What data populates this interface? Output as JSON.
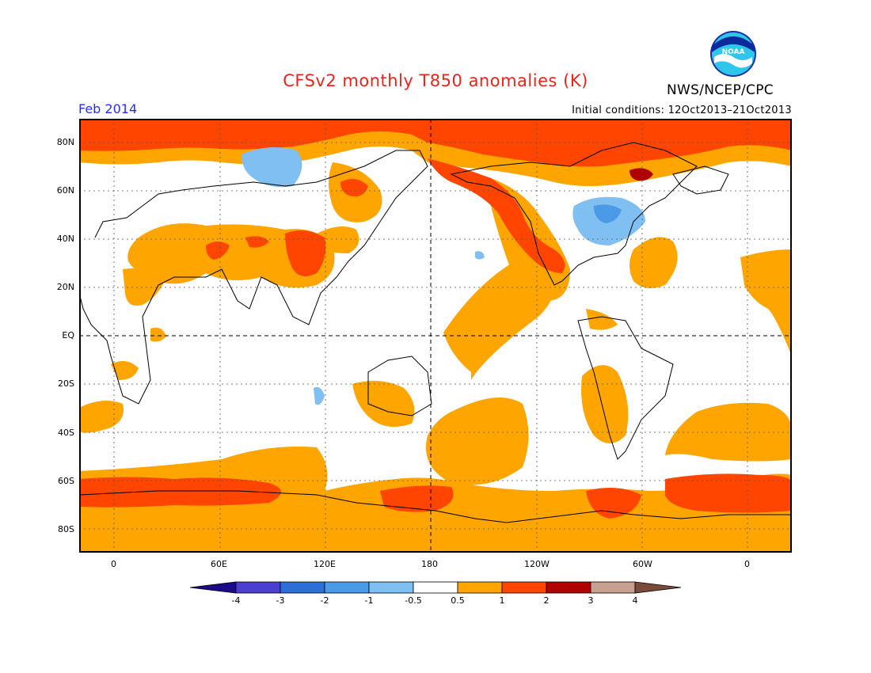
{
  "header": {
    "title": "CFSv2 monthly T850 anomalies (K)",
    "agency": "NWS/NCEP/CPC",
    "valid_month": "Feb 2014",
    "initial_conditions": "Initial conditions: 12Oct2013–21Oct2013",
    "logo_text": "NOAA"
  },
  "map": {
    "projection": "cylindrical equidistant",
    "lon_labels": [
      "0",
      "60E",
      "120E",
      "180",
      "120W",
      "60W",
      "0"
    ],
    "lat_labels": [
      "80N",
      "60N",
      "40N",
      "20N",
      "EQ",
      "20S",
      "40S",
      "60S",
      "80S"
    ],
    "grid": "dotted",
    "reference_lines": [
      "equator dashed",
      "dateline dashed"
    ]
  },
  "colorbar": {
    "labels": [
      "-4",
      "-3",
      "-2",
      "-1",
      "-0.5",
      "0.5",
      "1",
      "2",
      "3",
      "4"
    ],
    "colors": [
      "#1c0a8c",
      "#4a3fd0",
      "#2d6fd6",
      "#4a9ae8",
      "#7fbff2",
      "#ffffff",
      "#ffa500",
      "#ff4500",
      "#b00000",
      "#c8a090",
      "#7a4a3a"
    ]
  }
}
